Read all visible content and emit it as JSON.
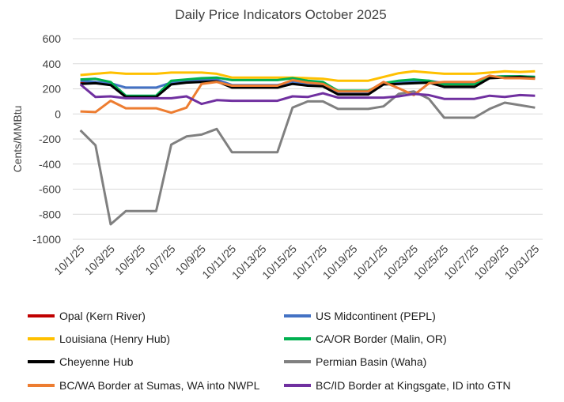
{
  "chart_data": {
    "type": "line",
    "title": "Daily Price Indicators October 2025",
    "xlabel": "",
    "ylabel": "Cents/MMBtu",
    "ylim": [
      -1000,
      600
    ],
    "yticks": [
      600,
      400,
      200,
      0,
      -200,
      -400,
      -600,
      -800,
      -1000
    ],
    "ytick_labels": [
      "600",
      "400",
      "200",
      "0",
      "-200",
      "-400",
      "-600",
      "-800",
      "-1000"
    ],
    "grid": "horizontal",
    "legend_position": "bottom",
    "x": [
      "10/1/25",
      "10/2/25",
      "10/3/25",
      "10/4/25",
      "10/5/25",
      "10/6/25",
      "10/7/25",
      "10/8/25",
      "10/9/25",
      "10/10/25",
      "10/11/25",
      "10/12/25",
      "10/13/25",
      "10/14/25",
      "10/15/25",
      "10/16/25",
      "10/17/25",
      "10/18/25",
      "10/19/25",
      "10/20/25",
      "10/21/25",
      "10/22/25",
      "10/23/25",
      "10/24/25",
      "10/25/25",
      "10/26/25",
      "10/27/25",
      "10/28/25",
      "10/29/25",
      "10/30/25",
      "10/31/25"
    ],
    "xtick_labels": [
      "10/1/25",
      "10/3/25",
      "10/5/25",
      "10/7/25",
      "10/9/25",
      "10/11/25",
      "10/13/25",
      "10/15/25",
      "10/17/25",
      "10/19/25",
      "10/21/25",
      "10/23/25",
      "10/25/25",
      "10/27/25",
      "10/29/25",
      "10/31/25"
    ],
    "series": [
      {
        "name": "Opal (Kern River)",
        "color": "#C00000",
        "values": [
          245,
          255,
          235,
          140,
          140,
          140,
          240,
          255,
          265,
          265,
          220,
          220,
          220,
          220,
          250,
          235,
          225,
          165,
          165,
          165,
          240,
          245,
          250,
          255,
          225,
          225,
          225,
          290,
          295,
          300,
          290
        ]
      },
      {
        "name": "US Midcontinent (PEPL)",
        "color": "#4472C4",
        "values": [
          265,
          255,
          245,
          210,
          210,
          210,
          250,
          260,
          270,
          275,
          230,
          230,
          230,
          230,
          255,
          240,
          235,
          170,
          170,
          170,
          245,
          255,
          260,
          265,
          245,
          245,
          245,
          295,
          300,
          300,
          295
        ]
      },
      {
        "name": "Louisiana (Henry Hub)",
        "color": "#FFC000",
        "values": [
          310,
          320,
          330,
          320,
          320,
          320,
          330,
          330,
          330,
          320,
          290,
          290,
          290,
          290,
          290,
          285,
          280,
          265,
          265,
          265,
          295,
          325,
          340,
          330,
          320,
          320,
          320,
          330,
          340,
          335,
          340
        ]
      },
      {
        "name": "CA/OR Border (Malin, OR)",
        "color": "#00B050",
        "values": [
          275,
          280,
          255,
          145,
          145,
          145,
          265,
          275,
          285,
          290,
          270,
          270,
          270,
          270,
          285,
          265,
          255,
          185,
          185,
          185,
          245,
          265,
          275,
          265,
          235,
          235,
          235,
          295,
          300,
          300,
          295
        ]
      },
      {
        "name": "Cheyenne Hub",
        "color": "#000000",
        "values": [
          240,
          245,
          230,
          135,
          135,
          135,
          235,
          250,
          255,
          260,
          210,
          210,
          210,
          210,
          240,
          225,
          220,
          155,
          155,
          155,
          235,
          240,
          245,
          250,
          215,
          215,
          215,
          285,
          290,
          295,
          285
        ]
      },
      {
        "name": "Permian Basin (Waha)",
        "color": "#808080",
        "values": [
          -130,
          -250,
          -880,
          -775,
          -775,
          -775,
          -245,
          -180,
          -165,
          -120,
          -305,
          -305,
          -305,
          -305,
          50,
          100,
          100,
          40,
          40,
          40,
          60,
          160,
          180,
          120,
          -30,
          -30,
          -30,
          40,
          90,
          70,
          50
        ]
      },
      {
        "name": "BC/WA Border at Sumas, WA into NWPL",
        "color": "#ED7D31",
        "values": [
          20,
          15,
          105,
          45,
          45,
          45,
          10,
          50,
          240,
          255,
          225,
          225,
          225,
          225,
          270,
          250,
          240,
          180,
          180,
          180,
          255,
          205,
          150,
          245,
          255,
          255,
          255,
          305,
          285,
          285,
          280
        ]
      },
      {
        "name": "BC/ID Border at Kingsgate, ID into GTN",
        "color": "#7030A0",
        "values": [
          235,
          135,
          140,
          125,
          125,
          125,
          125,
          140,
          80,
          110,
          105,
          105,
          105,
          105,
          140,
          135,
          165,
          130,
          130,
          130,
          130,
          140,
          160,
          150,
          120,
          120,
          120,
          145,
          135,
          150,
          145
        ]
      }
    ]
  }
}
